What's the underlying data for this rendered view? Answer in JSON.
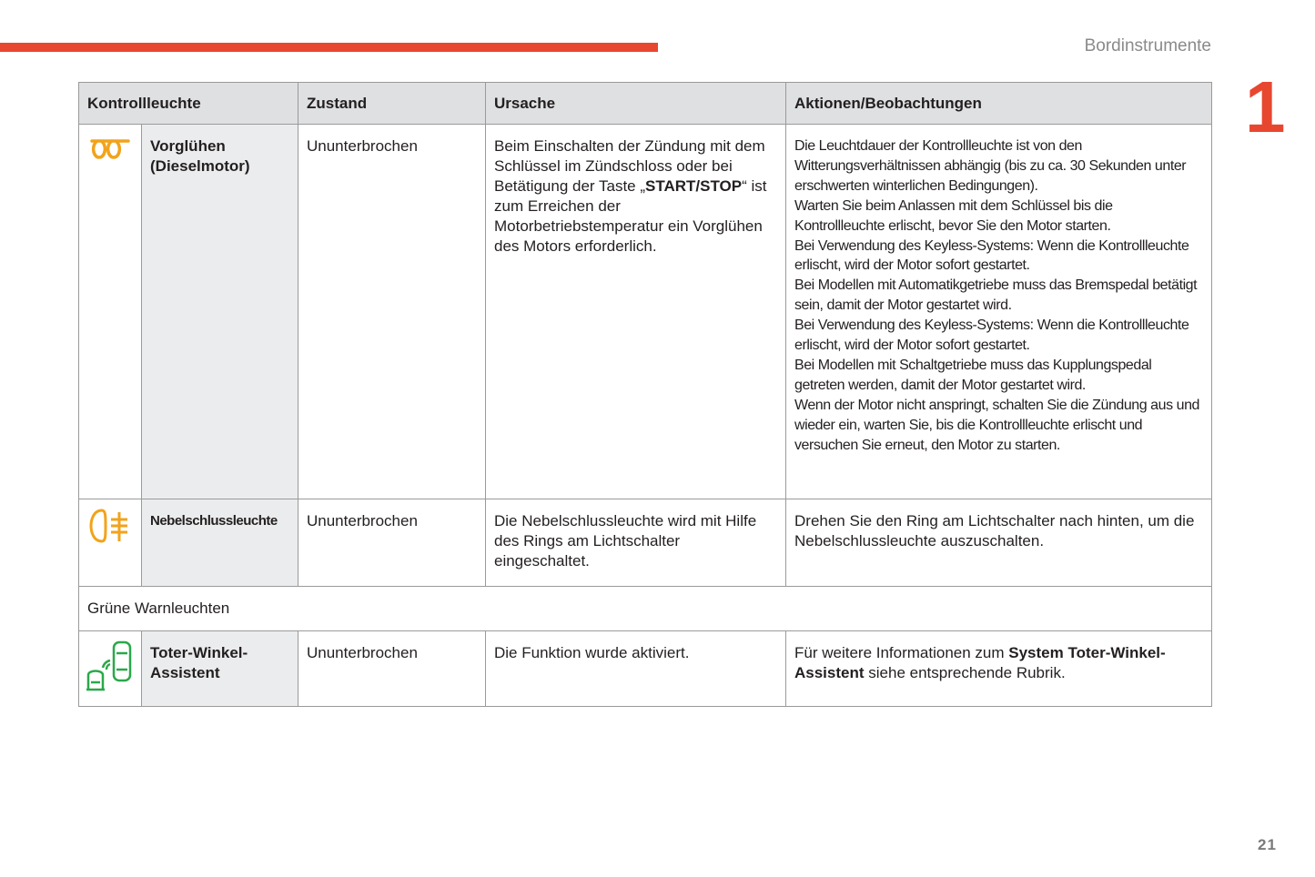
{
  "header": {
    "section": "Bordinstrumente",
    "chapter": "1",
    "page": "21",
    "accent": "#e8472f"
  },
  "table": {
    "columns": [
      "Kontrollleuchte",
      "Zustand",
      "Ursache",
      "Aktionen/Beobachtungen"
    ],
    "rows": [
      {
        "icon": "glow-plug-icon",
        "icon_color": "#f2a31b",
        "name": "Vorglühen (Dieselmotor)",
        "state": "Ununterbrochen",
        "cause_pre": "Beim Einschalten der Zündung mit dem Schlüssel im Zündschloss oder bei Betätigung der Taste „",
        "cause_bold": "START/STOP",
        "cause_post": "“ ist zum Erreichen der Motorbetriebstemperatur ein Vorglühen des Motors erforderlich.",
        "actions": [
          "Die Leuchtdauer der Kontrollleuchte ist von den Witterungsverhältnissen abhängig (bis zu ca. 30 Sekunden unter erschwerten winterlichen Bedingungen).",
          "Warten Sie beim Anlassen mit dem Schlüssel bis die Kontrollleuchte erlischt, bevor Sie den Motor starten.",
          "Bei Verwendung des Keyless-Systems: Wenn die Kontrollleuchte erlischt, wird der Motor sofort gestartet.",
          "Bei Modellen mit Automatikgetriebe muss das Bremspedal betätigt sein, damit der Motor gestartet wird.",
          "Bei Verwendung des Keyless-Systems: Wenn die Kontrollleuchte erlischt, wird der Motor sofort gestartet.",
          "Bei Modellen mit Schaltgetriebe muss das Kupplungspedal getreten werden, damit der Motor gestartet wird.",
          "Wenn der Motor nicht anspringt, schalten Sie die Zündung aus und wieder ein, warten Sie, bis die Kontrollleuchte erlischt und versuchen Sie erneut, den Motor zu starten."
        ]
      },
      {
        "icon": "rear-fog-light-icon",
        "icon_color": "#f2a31b",
        "name": "Nebelschlussleuchte",
        "state": "Ununterbrochen",
        "cause": "Die Nebelschlussleuchte wird mit Hilfe des Rings am Lichtschalter eingeschaltet.",
        "action": "Drehen Sie den Ring am Lichtschalter nach hinten, um die Nebelschlussleuchte auszuschalten."
      },
      {
        "icon": "blind-spot-icon",
        "icon_color": "#2aa84a",
        "name": "Toter-Winkel-Assistent",
        "state": "Ununterbrochen",
        "cause": "Die Funktion wurde aktiviert.",
        "action_pre": "Für weitere Informationen zum ",
        "action_bold": "System Toter-Winkel-Assistent",
        "action_post": " siehe entsprechende Rubrik."
      }
    ],
    "section_label": "Grüne Warnleuchten"
  }
}
